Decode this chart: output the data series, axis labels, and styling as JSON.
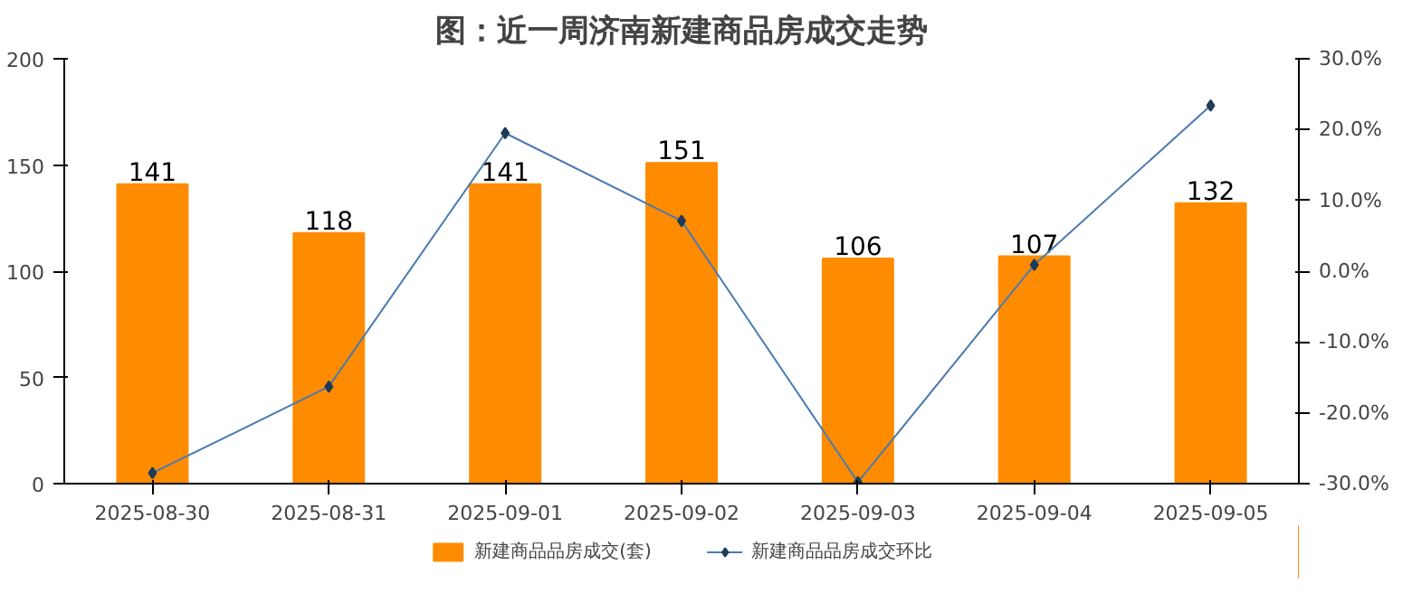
{
  "chart_data": {
    "type": "bar",
    "title": "图：近一周济南新建商品房成交走势",
    "categories": [
      "2025-08-30",
      "2025-08-31",
      "2025-09-01",
      "2025-09-02",
      "2025-09-03",
      "2025-09-04",
      "2025-09-05"
    ],
    "series": [
      {
        "name": "新建商品品房成交(套)",
        "color": "#ff8c00",
        "values": [
          141,
          118,
          141,
          151,
          106,
          107,
          132
        ],
        "value_labels": [
          "141",
          "118",
          "141",
          "151",
          "106",
          "107",
          "132"
        ]
      },
      {
        "name": "新建商品品房成交环比",
        "type": "line",
        "axis": "y2",
        "color": "#4a7ab0",
        "marker": "diamond",
        "values": [
          -28.5,
          -16.3,
          19.5,
          7.1,
          -29.8,
          0.9,
          23.4
        ]
      }
    ],
    "ylim": [
      0,
      200
    ],
    "yticks": [
      0,
      50,
      100,
      150,
      200
    ],
    "y2lim": [
      -30,
      30
    ],
    "y2ticks": [
      {
        "value": -30,
        "label": "-30.0%"
      },
      {
        "value": -20,
        "label": "-20.0%"
      },
      {
        "value": -10,
        "label": "-10.0%"
      },
      {
        "value": 0,
        "label": "0.0%"
      },
      {
        "value": 10,
        "label": "10.0%"
      },
      {
        "value": 20,
        "label": "20.0%"
      },
      {
        "value": 30,
        "label": "30.0%"
      }
    ],
    "grid": false,
    "legend": "bottom"
  }
}
